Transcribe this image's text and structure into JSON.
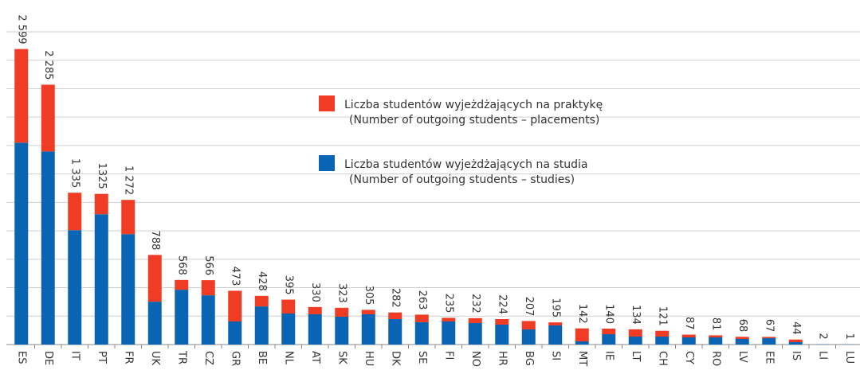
{
  "chart_data": {
    "type": "stacked_bar",
    "categories": [
      "ES",
      "DE",
      "IT",
      "PT",
      "FR",
      "UK",
      "TR",
      "CZ",
      "GR",
      "BE",
      "NL",
      "AT",
      "SK",
      "HU",
      "DK",
      "SE",
      "FI",
      "NO",
      "HR",
      "BG",
      "SI",
      "MT",
      "IE",
      "LT",
      "CH",
      "CY",
      "RO",
      "LV",
      "EE",
      "IS",
      "LI",
      "LU"
    ],
    "series": [
      {
        "name": "Liczba studentów wyjeżdżających na studia (Number of outgoing students – studies)",
        "color": "#0a64b4",
        "values": [
          1775,
          1698,
          1006,
          1146,
          971,
          377,
          482,
          433,
          203,
          335,
          273,
          266,
          245,
          266,
          224,
          196,
          203,
          189,
          175,
          133,
          168,
          28,
          91,
          70,
          70,
          63,
          63,
          49,
          56,
          21,
          2,
          1
        ]
      },
      {
        "name": "Liczba studentów wyjeżdżających na praktykę (Number of outgoing students – placements)",
        "color": "#f03c24",
        "values": [
          824,
          587,
          329,
          179,
          301,
          411,
          86,
          133,
          270,
          93,
          122,
          64,
          78,
          39,
          58,
          67,
          32,
          43,
          49,
          74,
          27,
          114,
          49,
          64,
          51,
          24,
          18,
          19,
          11,
          23,
          0,
          0
        ]
      }
    ],
    "totals": [
      2599,
      2285,
      1335,
      1325,
      1272,
      788,
      568,
      566,
      473,
      428,
      395,
      330,
      323,
      305,
      282,
      263,
      235,
      232,
      224,
      207,
      195,
      142,
      140,
      134,
      121,
      87,
      81,
      68,
      67,
      44,
      2,
      1
    ],
    "total_labels": [
      "2 599",
      "2 285",
      "1 335",
      "1325",
      "1 272",
      "788",
      "568",
      "566",
      "473",
      "428",
      "395",
      "330",
      "323",
      "305",
      "282",
      "263",
      "235",
      "232",
      "224",
      "207",
      "195",
      "142",
      "140",
      "134",
      "121",
      "87",
      "81",
      "68",
      "67",
      "44",
      "2",
      "1"
    ],
    "ylim": [
      0,
      2750
    ],
    "yticks": [
      0,
      250,
      500,
      750,
      1000,
      1250,
      1500,
      1750,
      2000,
      2250,
      2500,
      2750
    ],
    "grid": true
  }
}
